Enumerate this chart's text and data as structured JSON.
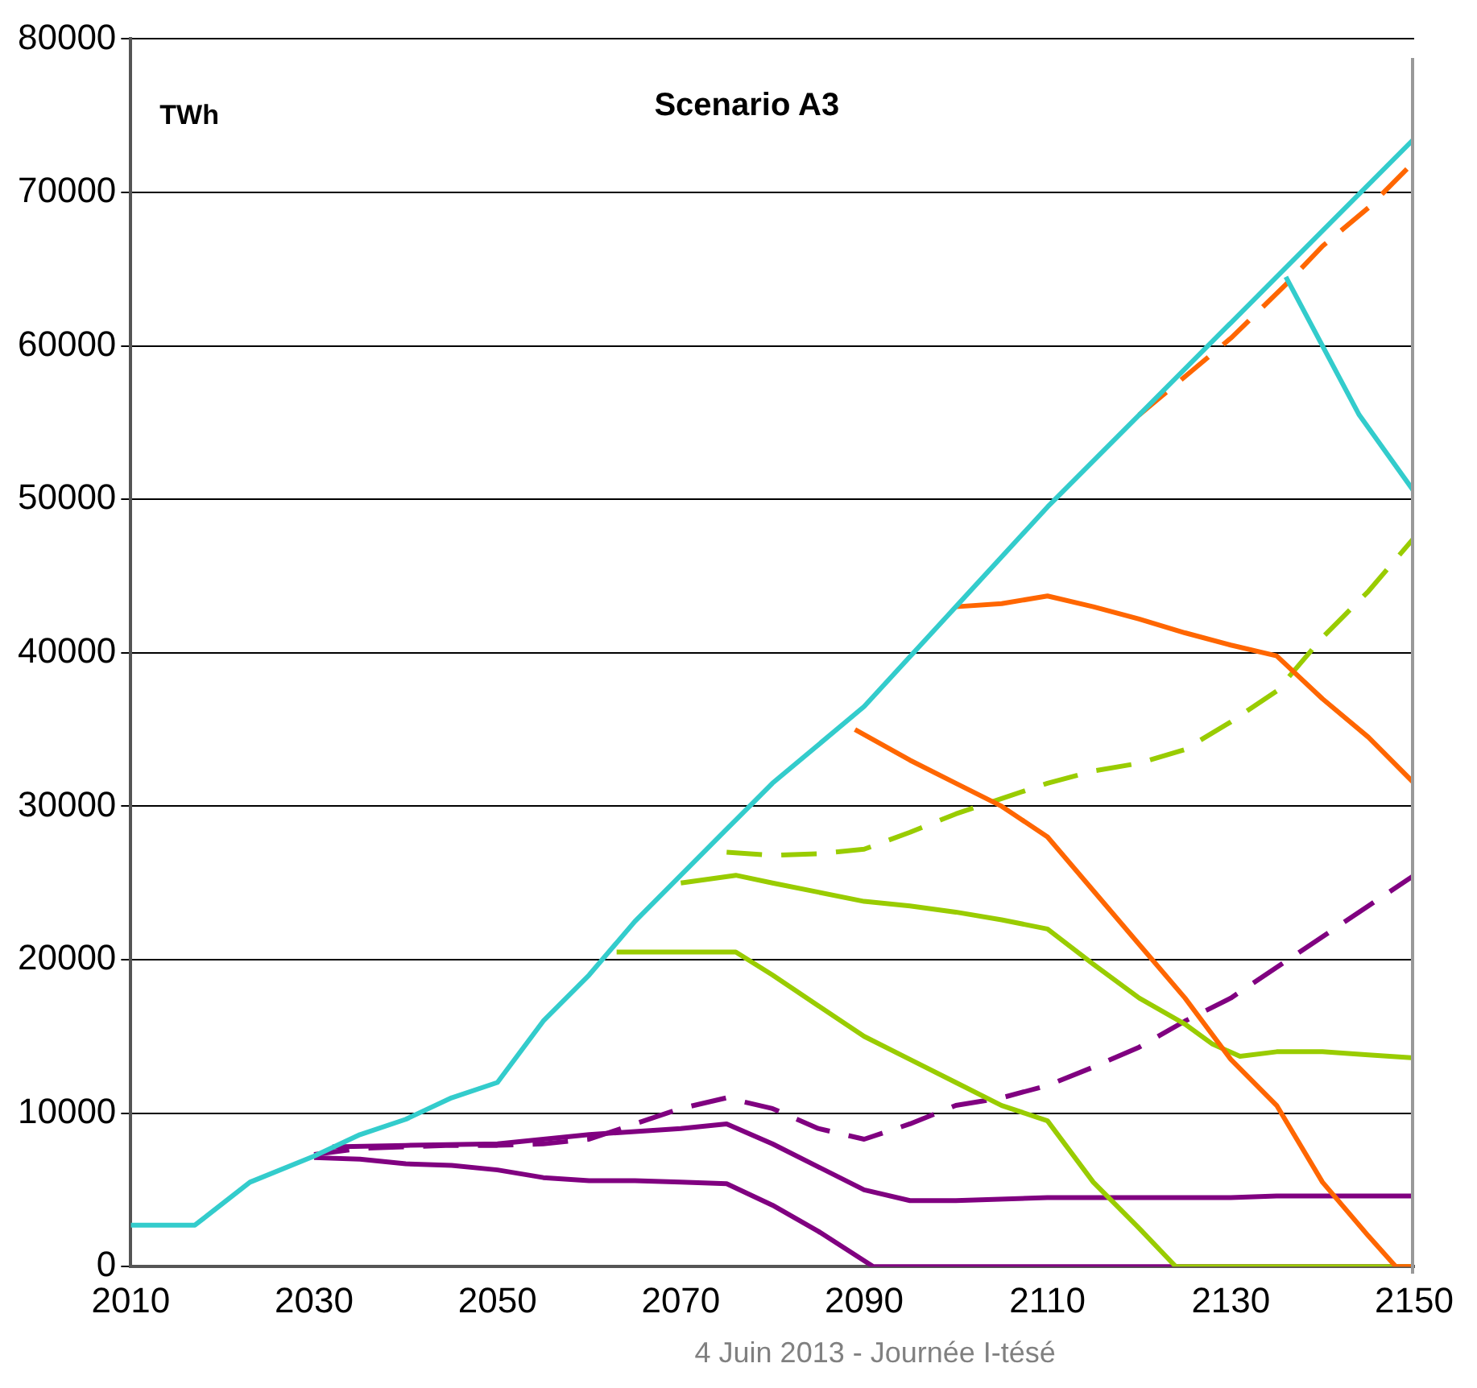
{
  "chart_data": {
    "type": "line",
    "title": "Scenario A3",
    "ylabel": "TWh",
    "annotations": [
      "4 Juin 2013 - Journée I-tésé"
    ],
    "xlim": [
      2010,
      2150
    ],
    "xticks": [
      2010,
      2030,
      2050,
      2070,
      2090,
      2110,
      2130,
      2150
    ],
    "ylim": [
      0,
      80000
    ],
    "yticks": [
      0,
      10000,
      20000,
      30000,
      40000,
      50000,
      60000,
      70000,
      80000
    ],
    "grid": "y",
    "legend": false,
    "marker": "none",
    "series": [
      {
        "color": "#33cccc",
        "line_style": "solid",
        "x": [
          2010,
          2017,
          2023,
          2030,
          2035,
          2040,
          2045,
          2050,
          2055,
          2060,
          2065,
          2070,
          2075,
          2080,
          2090,
          2100,
          2110,
          2120,
          2130,
          2140,
          2150
        ],
        "values": [
          2700,
          2700,
          5500,
          7200,
          8600,
          9600,
          11000,
          12000,
          16000,
          19000,
          22500,
          25500,
          28500,
          31500,
          36500,
          43000,
          49500,
          55500,
          61500,
          67500,
          73500
        ]
      },
      {
        "color": "#33cccc",
        "line_style": "solid",
        "x": [
          2136,
          2144,
          2150
        ],
        "values": [
          64500,
          55500,
          50500
        ]
      },
      {
        "color": "#ff6600",
        "line_style": "dashed",
        "x": [
          2120,
          2130,
          2136,
          2140,
          2145,
          2150
        ],
        "values": [
          55500,
          60500,
          64000,
          66500,
          69000,
          72000
        ]
      },
      {
        "color": "#ff6600",
        "line_style": "solid",
        "x": [
          2100,
          2105,
          2110,
          2115,
          2120,
          2125,
          2130,
          2135,
          2140,
          2145,
          2150
        ],
        "values": [
          43000,
          43200,
          43700,
          43000,
          42200,
          41300,
          40500,
          39800,
          37000,
          34500,
          31500
        ]
      },
      {
        "color": "#ff6600",
        "line_style": "solid",
        "x": [
          2089,
          2095,
          2100,
          2105,
          2110,
          2115,
          2120,
          2125,
          2130,
          2135,
          2140,
          2145,
          2148,
          2150
        ],
        "values": [
          35000,
          33000,
          31500,
          30000,
          28000,
          24500,
          21000,
          17500,
          13500,
          10500,
          5500,
          2000,
          0,
          0
        ]
      },
      {
        "color": "#99cc00",
        "line_style": "dashed",
        "x": [
          2075,
          2080,
          2085,
          2090,
          2095,
          2100,
          2105,
          2110,
          2115,
          2120,
          2125,
          2130,
          2135,
          2140,
          2145,
          2150
        ],
        "values": [
          27000,
          26800,
          26900,
          27200,
          28300,
          29500,
          30500,
          31500,
          32300,
          32800,
          33700,
          35500,
          37500,
          41000,
          44000,
          47500
        ]
      },
      {
        "color": "#99cc00",
        "line_style": "solid",
        "x": [
          2070,
          2076,
          2080,
          2085,
          2090,
          2095,
          2100,
          2105,
          2110,
          2115,
          2120,
          2125,
          2128,
          2131,
          2135,
          2140,
          2145,
          2150
        ],
        "values": [
          25000,
          25500,
          25000,
          24400,
          23800,
          23500,
          23100,
          22600,
          22000,
          19700,
          17500,
          15800,
          14500,
          13700,
          14000,
          14000,
          13800,
          13600
        ]
      },
      {
        "color": "#99cc00",
        "line_style": "solid",
        "x": [
          2063,
          2076,
          2080,
          2085,
          2090,
          2095,
          2100,
          2105,
          2110,
          2115,
          2120,
          2124,
          2150
        ],
        "values": [
          20500,
          20500,
          19000,
          17000,
          15000,
          13500,
          12000,
          10500,
          9500,
          5500,
          2500,
          0,
          0
        ]
      },
      {
        "color": "#800080",
        "line_style": "dashed",
        "x": [
          2030,
          2035,
          2040,
          2045,
          2050,
          2055,
          2060,
          2065,
          2070,
          2075,
          2080,
          2085,
          2090,
          2095,
          2100,
          2105,
          2110,
          2115,
          2120,
          2125,
          2130,
          2135,
          2140,
          2145,
          2150
        ],
        "values": [
          7300,
          7700,
          7800,
          7900,
          7900,
          8000,
          8300,
          9300,
          10300,
          11000,
          10300,
          9000,
          8300,
          9300,
          10500,
          11000,
          11800,
          13000,
          14300,
          16000,
          17500,
          19500,
          21500,
          23500,
          25500
        ]
      },
      {
        "color": "#800080",
        "line_style": "solid",
        "x": [
          2032,
          2040,
          2050,
          2055,
          2060,
          2065,
          2070,
          2075,
          2080,
          2085,
          2090,
          2095,
          2100,
          2110,
          2130,
          2135,
          2150
        ],
        "values": [
          7800,
          7900,
          8000,
          8300,
          8600,
          8800,
          9000,
          9300,
          8000,
          6500,
          5000,
          4300,
          4300,
          4500,
          4500,
          4600,
          4600
        ]
      },
      {
        "color": "#800080",
        "line_style": "solid",
        "x": [
          2030,
          2035,
          2040,
          2045,
          2050,
          2055,
          2060,
          2065,
          2070,
          2075,
          2080,
          2085,
          2091,
          2150
        ],
        "values": [
          7100,
          7000,
          6700,
          6600,
          6300,
          5800,
          5600,
          5600,
          5500,
          5400,
          4000,
          2300,
          0,
          0
        ]
      }
    ]
  }
}
